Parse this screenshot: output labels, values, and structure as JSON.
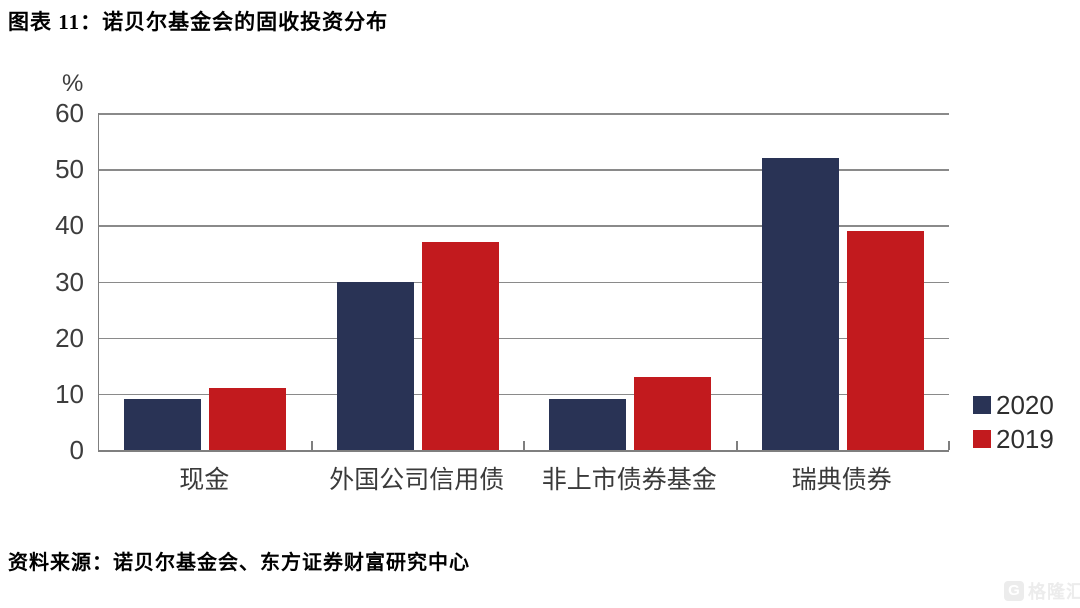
{
  "title": "图表 11：诺贝尔基金会的固收投资分布",
  "source": "资料来源：诺贝尔基金会、东方证券财富研究中心",
  "watermark": {
    "logo": "G",
    "text": "格隆汇"
  },
  "chart_data": {
    "type": "bar",
    "title": "图表 11：诺贝尔基金会的固收投资分布",
    "unit_label": "%",
    "categories": [
      "现金",
      "外国公司信用债",
      "非上市债券基金",
      "瑞典债券"
    ],
    "series": [
      {
        "name": "2020",
        "color": "#293355",
        "values": [
          9,
          30,
          9,
          52
        ]
      },
      {
        "name": "2019",
        "color": "#c21a1e",
        "values": [
          11,
          37,
          13,
          39
        ]
      }
    ],
    "ylim": [
      0,
      60
    ],
    "yticks": [
      0,
      10,
      20,
      30,
      40,
      50,
      60
    ],
    "grid": true,
    "legend_position": "right",
    "colors": {
      "grid": "#8a8a8a",
      "axis": "#7f7f7f",
      "tick_label": "#3d3d3d"
    }
  }
}
